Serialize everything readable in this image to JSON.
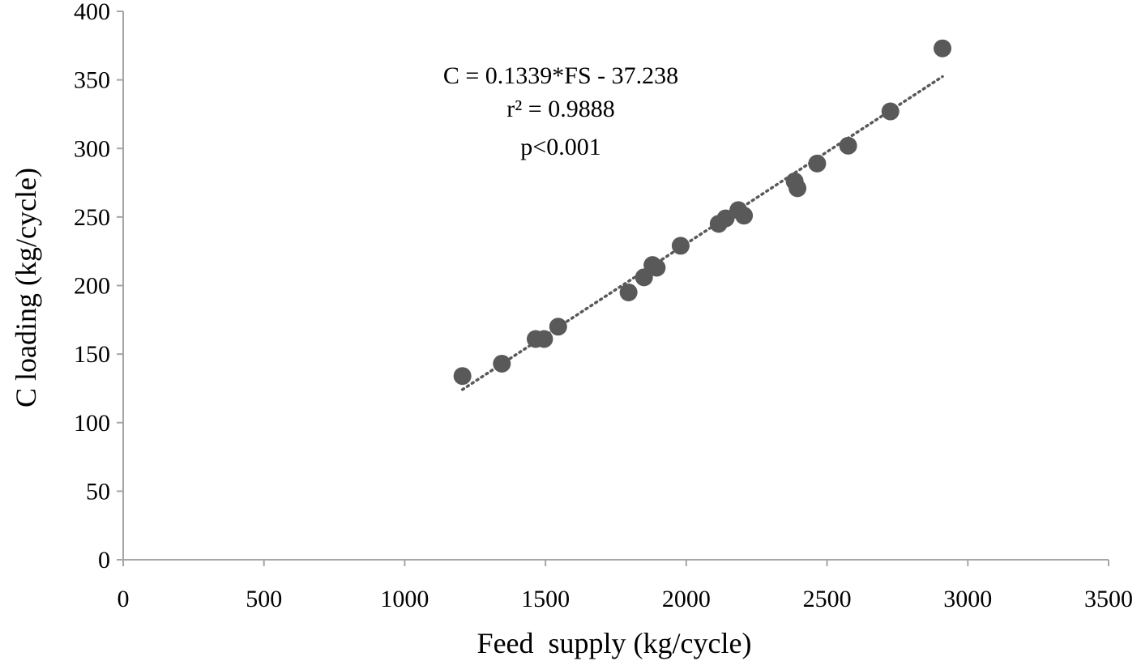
{
  "chart_data": {
    "type": "scatter",
    "title": "",
    "xlabel": "Feed  supply (kg/cycle)",
    "ylabel": "C loading (kg/cycle)",
    "xlim": [
      0,
      3500
    ],
    "ylim": [
      0,
      400
    ],
    "xticks": [
      "0",
      "500",
      "1000",
      "1500",
      "2000",
      "2500",
      "3000",
      "3500"
    ],
    "yticks": [
      "0",
      "50",
      "100",
      "150",
      "200",
      "250",
      "300",
      "350",
      "400"
    ],
    "grid": false,
    "legend": "none",
    "marker_color": "#595959",
    "trendline_color": "#595959",
    "series": [
      {
        "x": [
          1205,
          1345,
          1465,
          1495,
          1545,
          1795,
          1850,
          1880,
          1895,
          1980,
          2115,
          2140,
          2185,
          2205,
          2385,
          2395,
          2465,
          2575,
          2725,
          2910
        ],
        "y": [
          134,
          143,
          161,
          161,
          170,
          195,
          206,
          215,
          213,
          229,
          245,
          249,
          255,
          251,
          276,
          271,
          289,
          302,
          327,
          373
        ]
      }
    ],
    "trendline": {
      "slope": 0.1339,
      "intercept": -37.238,
      "x_range": [
        1205,
        2910
      ]
    },
    "annotations": [
      "C = 0.1339*FS  - 37.238",
      "r² = 0.9888",
      "p<0.001"
    ]
  }
}
